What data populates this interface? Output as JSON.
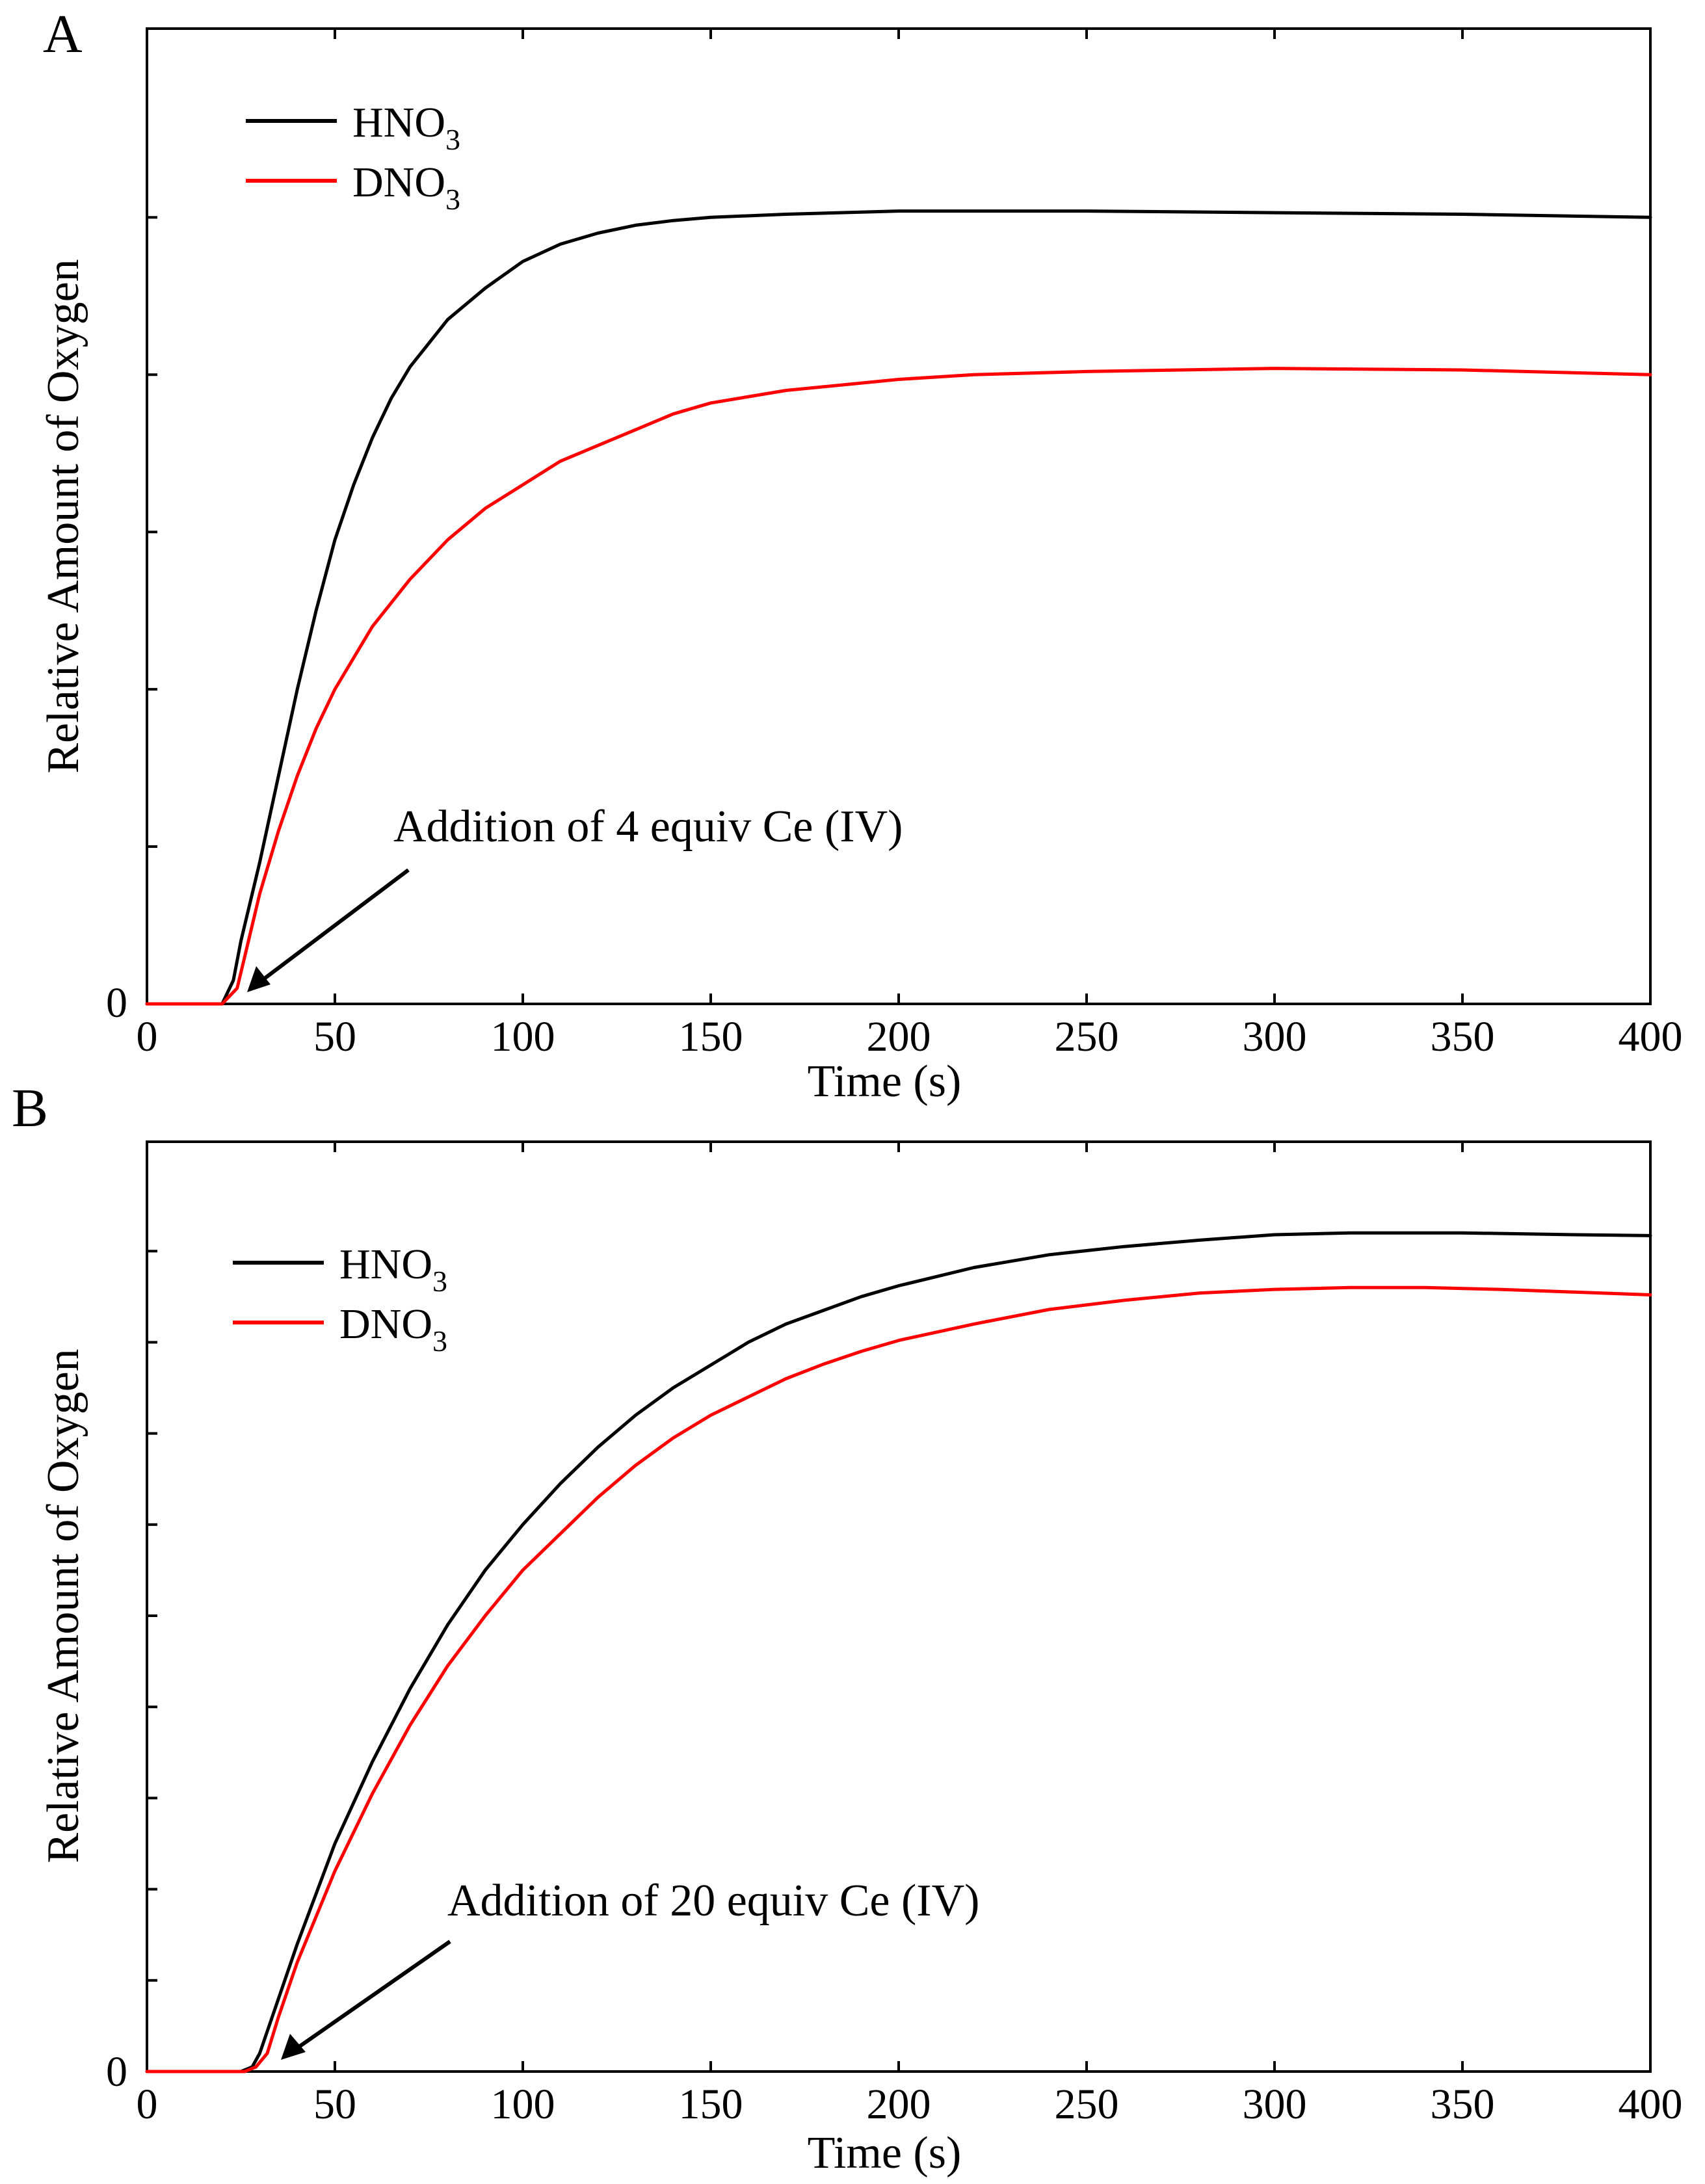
{
  "chart_data": [
    {
      "panel": "A",
      "type": "line",
      "xlabel": "Time (s)",
      "ylabel": "Relative Amount of Oxygen",
      "xlim": [
        0,
        400
      ],
      "ylim": [
        0,
        6.2
      ],
      "x_ticks": [
        0,
        50,
        100,
        150,
        200,
        250,
        300,
        350,
        400
      ],
      "y_tick_labels": [
        "0"
      ],
      "y_minor_ticks": [
        1,
        2,
        3,
        4,
        5
      ],
      "legend_placement": "top-left",
      "annotation": {
        "text": "Addition of 4 equiv Ce (IV)",
        "target": [
          23,
          0.1
        ]
      },
      "series": [
        {
          "name": "HNO3",
          "name_base": "HNO",
          "name_sub": "3",
          "color": "#000000",
          "points": [
            [
              0,
              0
            ],
            [
              10,
              0
            ],
            [
              20,
              0
            ],
            [
              23,
              0.15
            ],
            [
              25,
              0.4
            ],
            [
              30,
              0.9
            ],
            [
              35,
              1.45
            ],
            [
              40,
              2.0
            ],
            [
              45,
              2.5
            ],
            [
              50,
              2.95
            ],
            [
              55,
              3.3
            ],
            [
              60,
              3.6
            ],
            [
              65,
              3.85
            ],
            [
              70,
              4.05
            ],
            [
              75,
              4.2
            ],
            [
              80,
              4.35
            ],
            [
              90,
              4.55
            ],
            [
              100,
              4.72
            ],
            [
              110,
              4.83
            ],
            [
              120,
              4.9
            ],
            [
              130,
              4.95
            ],
            [
              140,
              4.98
            ],
            [
              150,
              5.0
            ],
            [
              170,
              5.02
            ],
            [
              200,
              5.04
            ],
            [
              250,
              5.04
            ],
            [
              300,
              5.03
            ],
            [
              350,
              5.02
            ],
            [
              400,
              5.0
            ]
          ]
        },
        {
          "name": "DNO3",
          "name_base": "DNO",
          "name_sub": "3",
          "color": "#ff0000",
          "points": [
            [
              0,
              0
            ],
            [
              10,
              0
            ],
            [
              20,
              0
            ],
            [
              24,
              0.1
            ],
            [
              26,
              0.3
            ],
            [
              30,
              0.7
            ],
            [
              35,
              1.1
            ],
            [
              40,
              1.45
            ],
            [
              45,
              1.75
            ],
            [
              50,
              2.0
            ],
            [
              60,
              2.4
            ],
            [
              70,
              2.7
            ],
            [
              80,
              2.95
            ],
            [
              90,
              3.15
            ],
            [
              100,
              3.3
            ],
            [
              110,
              3.45
            ],
            [
              120,
              3.55
            ],
            [
              130,
              3.65
            ],
            [
              140,
              3.75
            ],
            [
              150,
              3.82
            ],
            [
              170,
              3.9
            ],
            [
              200,
              3.97
            ],
            [
              220,
              4.0
            ],
            [
              250,
              4.02
            ],
            [
              300,
              4.04
            ],
            [
              350,
              4.03
            ],
            [
              400,
              4.0
            ]
          ]
        }
      ]
    },
    {
      "panel": "B",
      "type": "line",
      "xlabel": "Time (s)",
      "ylabel": "Relative Amount of Oxygen",
      "xlim": [
        0,
        400
      ],
      "ylim": [
        0,
        10.2
      ],
      "x_ticks": [
        0,
        50,
        100,
        150,
        200,
        250,
        300,
        350,
        400
      ],
      "y_tick_labels": [
        "0"
      ],
      "y_minor_ticks": [
        1,
        2,
        3,
        4,
        5,
        6,
        7,
        8,
        9
      ],
      "legend_placement": "top-left",
      "annotation": {
        "text": "Addition of 20 equiv Ce (IV)",
        "target": [
          35,
          0.1
        ]
      },
      "series": [
        {
          "name": "HNO3",
          "name_base": "HNO",
          "name_sub": "3",
          "color": "#000000",
          "points": [
            [
              0,
              0
            ],
            [
              25,
              0
            ],
            [
              28,
              0.05
            ],
            [
              30,
              0.2
            ],
            [
              35,
              0.8
            ],
            [
              40,
              1.4
            ],
            [
              50,
              2.5
            ],
            [
              60,
              3.4
            ],
            [
              70,
              4.2
            ],
            [
              80,
              4.9
            ],
            [
              90,
              5.5
            ],
            [
              100,
              6.0
            ],
            [
              110,
              6.45
            ],
            [
              120,
              6.85
            ],
            [
              130,
              7.2
            ],
            [
              140,
              7.5
            ],
            [
              150,
              7.75
            ],
            [
              160,
              8.0
            ],
            [
              170,
              8.2
            ],
            [
              180,
              8.35
            ],
            [
              190,
              8.5
            ],
            [
              200,
              8.62
            ],
            [
              220,
              8.82
            ],
            [
              240,
              8.96
            ],
            [
              260,
              9.05
            ],
            [
              280,
              9.12
            ],
            [
              300,
              9.18
            ],
            [
              320,
              9.2
            ],
            [
              350,
              9.2
            ],
            [
              380,
              9.18
            ],
            [
              400,
              9.17
            ]
          ]
        },
        {
          "name": "DNO3",
          "name_base": "DNO",
          "name_sub": "3",
          "color": "#ff0000",
          "points": [
            [
              0,
              0
            ],
            [
              26,
              0
            ],
            [
              29,
              0.05
            ],
            [
              32,
              0.2
            ],
            [
              35,
              0.6
            ],
            [
              40,
              1.2
            ],
            [
              50,
              2.2
            ],
            [
              60,
              3.05
            ],
            [
              70,
              3.8
            ],
            [
              80,
              4.45
            ],
            [
              90,
              5.0
            ],
            [
              100,
              5.5
            ],
            [
              110,
              5.9
            ],
            [
              120,
              6.3
            ],
            [
              130,
              6.65
            ],
            [
              140,
              6.95
            ],
            [
              150,
              7.2
            ],
            [
              160,
              7.4
            ],
            [
              170,
              7.6
            ],
            [
              180,
              7.76
            ],
            [
              190,
              7.9
            ],
            [
              200,
              8.02
            ],
            [
              220,
              8.2
            ],
            [
              240,
              8.36
            ],
            [
              260,
              8.46
            ],
            [
              280,
              8.54
            ],
            [
              300,
              8.58
            ],
            [
              320,
              8.6
            ],
            [
              340,
              8.6
            ],
            [
              360,
              8.58
            ],
            [
              380,
              8.55
            ],
            [
              400,
              8.52
            ]
          ]
        }
      ]
    }
  ]
}
